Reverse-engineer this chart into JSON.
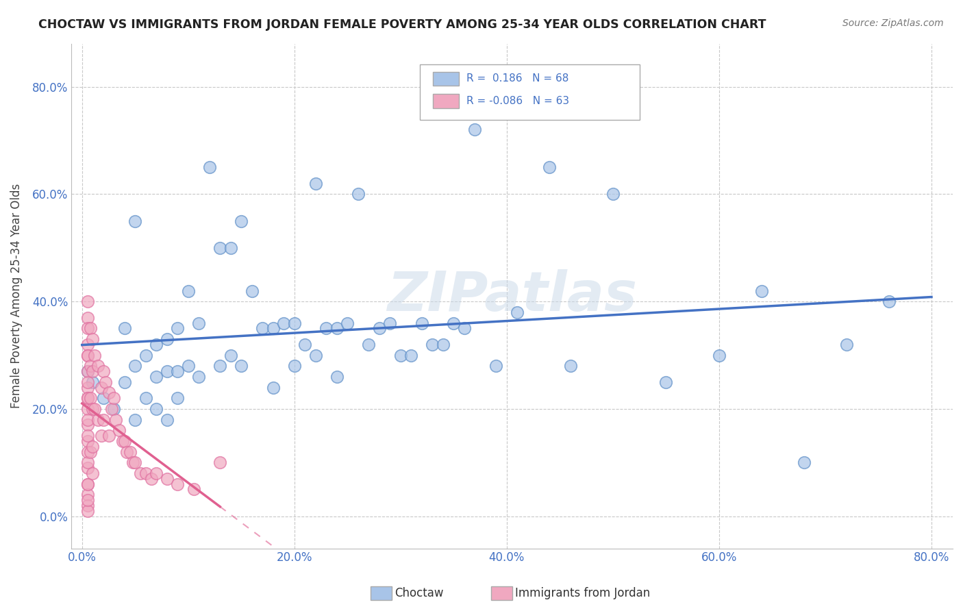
{
  "title": "CHOCTAW VS IMMIGRANTS FROM JORDAN FEMALE POVERTY AMONG 25-34 YEAR OLDS CORRELATION CHART",
  "source": "Source: ZipAtlas.com",
  "ylabel": "Female Poverty Among 25-34 Year Olds",
  "xlabel": "",
  "xlim": [
    -0.01,
    0.82
  ],
  "ylim": [
    -0.06,
    0.88
  ],
  "yticks": [
    0.0,
    0.2,
    0.4,
    0.6,
    0.8
  ],
  "xticks": [
    0.0,
    0.2,
    0.4,
    0.6,
    0.8
  ],
  "yticklabels": [
    "0.0%",
    "20.0%",
    "40.0%",
    "60.0%",
    "80.0%"
  ],
  "xticklabels": [
    "0.0%",
    "20.0%",
    "40.0%",
    "60.0%",
    "80.0%"
  ],
  "choctaw_color": "#a8c4e8",
  "jordan_color": "#f0a8c0",
  "choctaw_edge_color": "#6090c8",
  "jordan_edge_color": "#e070a0",
  "choctaw_line_color": "#4472c4",
  "jordan_line_color": "#e06090",
  "R_choctaw": 0.186,
  "N_choctaw": 68,
  "R_jordan": -0.086,
  "N_jordan": 63,
  "watermark": "ZIPatlas",
  "background_color": "#ffffff",
  "grid_color": "#c8c8c8",
  "legend_label_choctaw": "Choctaw",
  "legend_label_jordan": "Immigrants from Jordan",
  "choctaw_x": [
    0.005,
    0.01,
    0.02,
    0.03,
    0.04,
    0.04,
    0.05,
    0.05,
    0.05,
    0.06,
    0.06,
    0.07,
    0.07,
    0.07,
    0.08,
    0.08,
    0.08,
    0.09,
    0.09,
    0.09,
    0.1,
    0.1,
    0.11,
    0.11,
    0.12,
    0.13,
    0.13,
    0.14,
    0.14,
    0.15,
    0.15,
    0.16,
    0.17,
    0.18,
    0.18,
    0.19,
    0.2,
    0.2,
    0.21,
    0.22,
    0.22,
    0.23,
    0.24,
    0.24,
    0.25,
    0.26,
    0.27,
    0.28,
    0.29,
    0.3,
    0.31,
    0.32,
    0.33,
    0.34,
    0.35,
    0.36,
    0.37,
    0.39,
    0.41,
    0.44,
    0.46,
    0.5,
    0.55,
    0.6,
    0.64,
    0.68,
    0.72,
    0.76
  ],
  "choctaw_y": [
    0.27,
    0.25,
    0.22,
    0.2,
    0.35,
    0.25,
    0.55,
    0.28,
    0.18,
    0.3,
    0.22,
    0.32,
    0.26,
    0.2,
    0.33,
    0.27,
    0.18,
    0.35,
    0.27,
    0.22,
    0.42,
    0.28,
    0.36,
    0.26,
    0.65,
    0.5,
    0.28,
    0.5,
    0.3,
    0.55,
    0.28,
    0.42,
    0.35,
    0.35,
    0.24,
    0.36,
    0.36,
    0.28,
    0.32,
    0.62,
    0.3,
    0.35,
    0.35,
    0.26,
    0.36,
    0.6,
    0.32,
    0.35,
    0.36,
    0.3,
    0.3,
    0.36,
    0.32,
    0.32,
    0.36,
    0.35,
    0.72,
    0.28,
    0.38,
    0.65,
    0.28,
    0.6,
    0.25,
    0.3,
    0.42,
    0.1,
    0.32,
    0.4
  ],
  "jordan_x": [
    0.005,
    0.005,
    0.005,
    0.005,
    0.005,
    0.005,
    0.005,
    0.005,
    0.005,
    0.005,
    0.005,
    0.005,
    0.005,
    0.005,
    0.005,
    0.005,
    0.005,
    0.005,
    0.005,
    0.005,
    0.005,
    0.005,
    0.005,
    0.005,
    0.005,
    0.008,
    0.008,
    0.008,
    0.008,
    0.01,
    0.01,
    0.01,
    0.01,
    0.01,
    0.012,
    0.012,
    0.015,
    0.015,
    0.018,
    0.018,
    0.02,
    0.02,
    0.022,
    0.025,
    0.025,
    0.028,
    0.03,
    0.032,
    0.035,
    0.038,
    0.04,
    0.042,
    0.045,
    0.048,
    0.05,
    0.055,
    0.06,
    0.065,
    0.07,
    0.08,
    0.09,
    0.105,
    0.13
  ],
  "jordan_y": [
    0.4,
    0.37,
    0.35,
    0.32,
    0.3,
    0.27,
    0.24,
    0.22,
    0.2,
    0.17,
    0.14,
    0.12,
    0.09,
    0.06,
    0.04,
    0.02,
    0.01,
    0.3,
    0.25,
    0.22,
    0.18,
    0.15,
    0.1,
    0.06,
    0.03,
    0.35,
    0.28,
    0.22,
    0.12,
    0.33,
    0.27,
    0.2,
    0.13,
    0.08,
    0.3,
    0.2,
    0.28,
    0.18,
    0.24,
    0.15,
    0.27,
    0.18,
    0.25,
    0.23,
    0.15,
    0.2,
    0.22,
    0.18,
    0.16,
    0.14,
    0.14,
    0.12,
    0.12,
    0.1,
    0.1,
    0.08,
    0.08,
    0.07,
    0.08,
    0.07,
    0.06,
    0.05,
    0.1
  ]
}
